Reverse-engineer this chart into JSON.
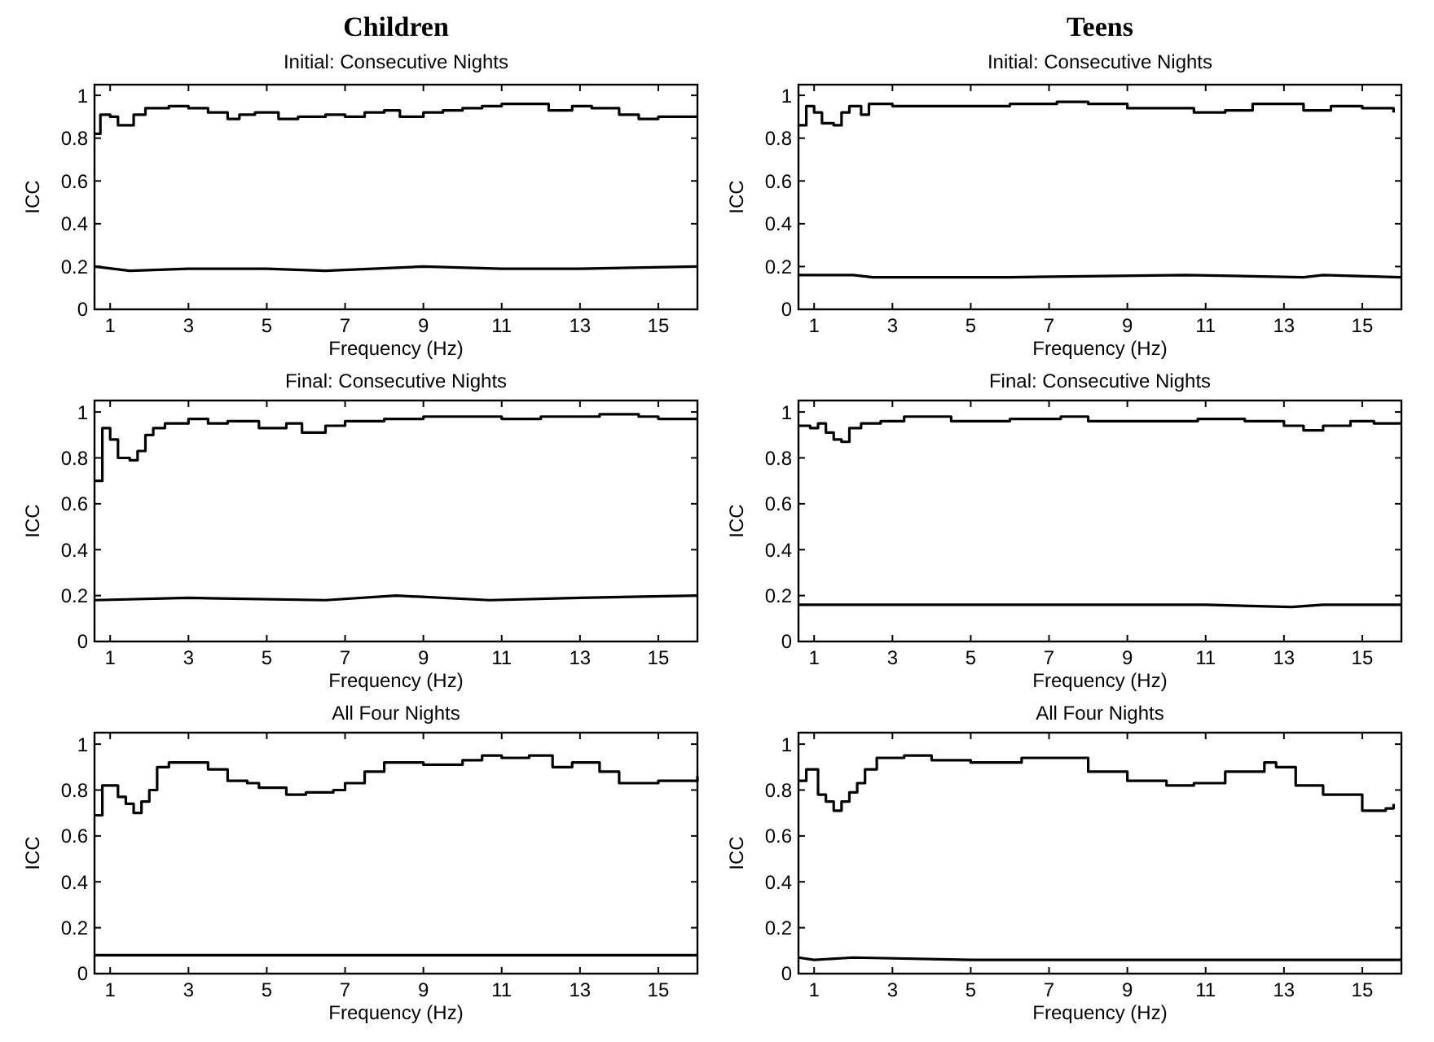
{
  "chart_data": [
    {
      "type": "line",
      "title": "Children",
      "subtitle": "Initial: Consecutive Nights",
      "xlabel": "Frequency (Hz)",
      "ylabel": "ICC",
      "xlim": [
        0.6,
        16
      ],
      "xticks": [
        1,
        3,
        5,
        7,
        9,
        11,
        13,
        15
      ],
      "ylim": [
        0,
        1.05
      ],
      "yticks": [
        0,
        0.2,
        0.4,
        0.6,
        0.8,
        1
      ],
      "series": [
        {
          "type": "step",
          "color": "#000000",
          "x": [
            0.6,
            0.75,
            1.0,
            1.2,
            1.6,
            1.9,
            2.5,
            3,
            3.5,
            4,
            4.3,
            4.7,
            5,
            5.3,
            5.8,
            6.5,
            7,
            7.5,
            8,
            8.4,
            9,
            9.5,
            10,
            10.5,
            11,
            11.7,
            12.2,
            12.8,
            13.3,
            14,
            14.5,
            15,
            15.5,
            16
          ],
          "values": [
            0.82,
            0.91,
            0.9,
            0.86,
            0.91,
            0.94,
            0.95,
            0.94,
            0.92,
            0.89,
            0.91,
            0.92,
            0.92,
            0.89,
            0.9,
            0.91,
            0.9,
            0.92,
            0.93,
            0.9,
            0.92,
            0.93,
            0.94,
            0.95,
            0.96,
            0.96,
            0.93,
            0.95,
            0.94,
            0.91,
            0.89,
            0.9,
            0.9,
            0.9
          ]
        },
        {
          "type": "line",
          "color": "#000000",
          "x": [
            0.6,
            1.5,
            3,
            5,
            6.5,
            9,
            11,
            13,
            16
          ],
          "values": [
            0.2,
            0.18,
            0.19,
            0.19,
            0.18,
            0.2,
            0.19,
            0.19,
            0.2
          ]
        }
      ]
    },
    {
      "type": "line",
      "title": "Teens",
      "subtitle": "Initial: Consecutive Nights",
      "xlabel": "Frequency (Hz)",
      "ylabel": "ICC",
      "xlim": [
        0.6,
        16
      ],
      "xticks": [
        1,
        3,
        5,
        7,
        9,
        11,
        13,
        15
      ],
      "ylim": [
        0,
        1.05
      ],
      "yticks": [
        0,
        0.2,
        0.4,
        0.6,
        0.8,
        1
      ],
      "series": [
        {
          "type": "step",
          "color": "#000000",
          "x": [
            0.6,
            0.8,
            1.0,
            1.2,
            1.5,
            1.7,
            1.9,
            2.2,
            2.4,
            3,
            4,
            5,
            6,
            7.2,
            8,
            9,
            10,
            10.7,
            11.5,
            12.2,
            12.8,
            13.5,
            14.2,
            15,
            15.8
          ],
          "values": [
            0.86,
            0.95,
            0.92,
            0.87,
            0.86,
            0.92,
            0.95,
            0.91,
            0.96,
            0.95,
            0.95,
            0.95,
            0.96,
            0.97,
            0.96,
            0.94,
            0.94,
            0.92,
            0.93,
            0.96,
            0.96,
            0.93,
            0.95,
            0.94,
            0.92
          ]
        },
        {
          "type": "line",
          "color": "#000000",
          "x": [
            0.6,
            2,
            2.5,
            6,
            10.5,
            13.5,
            14,
            16
          ],
          "values": [
            0.16,
            0.16,
            0.15,
            0.15,
            0.16,
            0.15,
            0.16,
            0.15
          ]
        }
      ]
    },
    {
      "type": "line",
      "title": "Final: Consecutive Nights",
      "xlabel": "Frequency (Hz)",
      "ylabel": "ICC",
      "xlim": [
        0.6,
        16
      ],
      "xticks": [
        1,
        3,
        5,
        7,
        9,
        11,
        13,
        15
      ],
      "ylim": [
        0,
        1.05
      ],
      "yticks": [
        0,
        0.2,
        0.4,
        0.6,
        0.8,
        1
      ],
      "series": [
        {
          "type": "step",
          "color": "#000000",
          "x": [
            0.6,
            0.8,
            1.0,
            1.2,
            1.5,
            1.7,
            1.9,
            2.1,
            2.4,
            3,
            3.5,
            4,
            4.8,
            5.5,
            5.9,
            6.5,
            7,
            8,
            9,
            10,
            11,
            12,
            13.5,
            14.5,
            15,
            16
          ],
          "values": [
            0.7,
            0.93,
            0.88,
            0.8,
            0.79,
            0.83,
            0.9,
            0.93,
            0.95,
            0.97,
            0.95,
            0.96,
            0.93,
            0.95,
            0.91,
            0.94,
            0.96,
            0.97,
            0.98,
            0.98,
            0.97,
            0.98,
            0.99,
            0.98,
            0.97,
            0.97
          ]
        },
        {
          "type": "line",
          "color": "#000000",
          "x": [
            0.6,
            3,
            6.5,
            8.3,
            10.7,
            13,
            16
          ],
          "values": [
            0.18,
            0.19,
            0.18,
            0.2,
            0.18,
            0.19,
            0.2
          ]
        }
      ]
    },
    {
      "type": "line",
      "title": "Final: Consecutive Nights",
      "xlabel": "Frequency (Hz)",
      "ylabel": "ICC",
      "xlim": [
        0.6,
        16
      ],
      "xticks": [
        1,
        3,
        5,
        7,
        9,
        11,
        13,
        15
      ],
      "ylim": [
        0,
        1.05
      ],
      "yticks": [
        0,
        0.2,
        0.4,
        0.6,
        0.8,
        1
      ],
      "series": [
        {
          "type": "step",
          "color": "#000000",
          "x": [
            0.6,
            0.9,
            1.1,
            1.3,
            1.5,
            1.7,
            1.9,
            2.2,
            2.7,
            3.3,
            4.5,
            6,
            7.3,
            8,
            9,
            10.8,
            12,
            13,
            13.5,
            14,
            14.7,
            15.3,
            16
          ],
          "values": [
            0.94,
            0.93,
            0.95,
            0.91,
            0.88,
            0.87,
            0.93,
            0.95,
            0.96,
            0.98,
            0.96,
            0.97,
            0.98,
            0.96,
            0.96,
            0.97,
            0.96,
            0.94,
            0.92,
            0.94,
            0.96,
            0.95,
            0.95
          ]
        },
        {
          "type": "line",
          "color": "#000000",
          "x": [
            0.6,
            1.5,
            5,
            8,
            11,
            13.2,
            14,
            16
          ],
          "values": [
            0.16,
            0.16,
            0.16,
            0.16,
            0.16,
            0.15,
            0.16,
            0.16
          ]
        }
      ]
    },
    {
      "type": "line",
      "title": "All Four Nights",
      "xlabel": "Frequency (Hz)",
      "ylabel": "ICC",
      "xlim": [
        0.6,
        16
      ],
      "xticks": [
        1,
        3,
        5,
        7,
        9,
        11,
        13,
        15
      ],
      "ylim": [
        0,
        1.05
      ],
      "yticks": [
        0,
        0.2,
        0.4,
        0.6,
        0.8,
        1
      ],
      "series": [
        {
          "type": "step",
          "color": "#000000",
          "x": [
            0.6,
            0.8,
            1.2,
            1.4,
            1.6,
            1.8,
            2.0,
            2.2,
            2.5,
            3,
            3.5,
            4,
            4.5,
            4.8,
            5.5,
            6,
            6.7,
            7,
            7.5,
            8,
            9,
            10,
            10.5,
            11,
            11.7,
            12.3,
            12.8,
            13.5,
            14,
            15,
            16
          ],
          "values": [
            0.69,
            0.82,
            0.77,
            0.74,
            0.7,
            0.75,
            0.8,
            0.9,
            0.92,
            0.92,
            0.89,
            0.84,
            0.83,
            0.81,
            0.78,
            0.79,
            0.8,
            0.83,
            0.88,
            0.92,
            0.91,
            0.93,
            0.95,
            0.94,
            0.95,
            0.9,
            0.92,
            0.88,
            0.83,
            0.84,
            0.86
          ]
        },
        {
          "type": "line",
          "color": "#000000",
          "x": [
            0.6,
            5,
            16
          ],
          "values": [
            0.08,
            0.08,
            0.08
          ]
        }
      ]
    },
    {
      "type": "line",
      "title": "All Four Nights",
      "xlabel": "Frequency (Hz)",
      "ylabel": "ICC",
      "xlim": [
        0.6,
        16
      ],
      "xticks": [
        1,
        3,
        5,
        7,
        9,
        11,
        13,
        15
      ],
      "ylim": [
        0,
        1.05
      ],
      "yticks": [
        0,
        0.2,
        0.4,
        0.6,
        0.8,
        1
      ],
      "series": [
        {
          "type": "step",
          "color": "#000000",
          "x": [
            0.6,
            0.8,
            1.1,
            1.3,
            1.5,
            1.7,
            1.9,
            2.1,
            2.3,
            2.6,
            3.3,
            4,
            5,
            6.3,
            7,
            8,
            9,
            10,
            10.7,
            11.5,
            12.5,
            12.8,
            13.3,
            14,
            15,
            15.6,
            15.8
          ],
          "values": [
            0.84,
            0.89,
            0.78,
            0.75,
            0.71,
            0.75,
            0.79,
            0.83,
            0.89,
            0.94,
            0.95,
            0.93,
            0.92,
            0.94,
            0.94,
            0.88,
            0.84,
            0.82,
            0.83,
            0.88,
            0.92,
            0.9,
            0.82,
            0.78,
            0.71,
            0.72,
            0.74
          ]
        },
        {
          "type": "line",
          "color": "#000000",
          "x": [
            0.6,
            1,
            2,
            5,
            16
          ],
          "values": [
            0.07,
            0.06,
            0.07,
            0.06,
            0.06
          ]
        }
      ]
    }
  ]
}
